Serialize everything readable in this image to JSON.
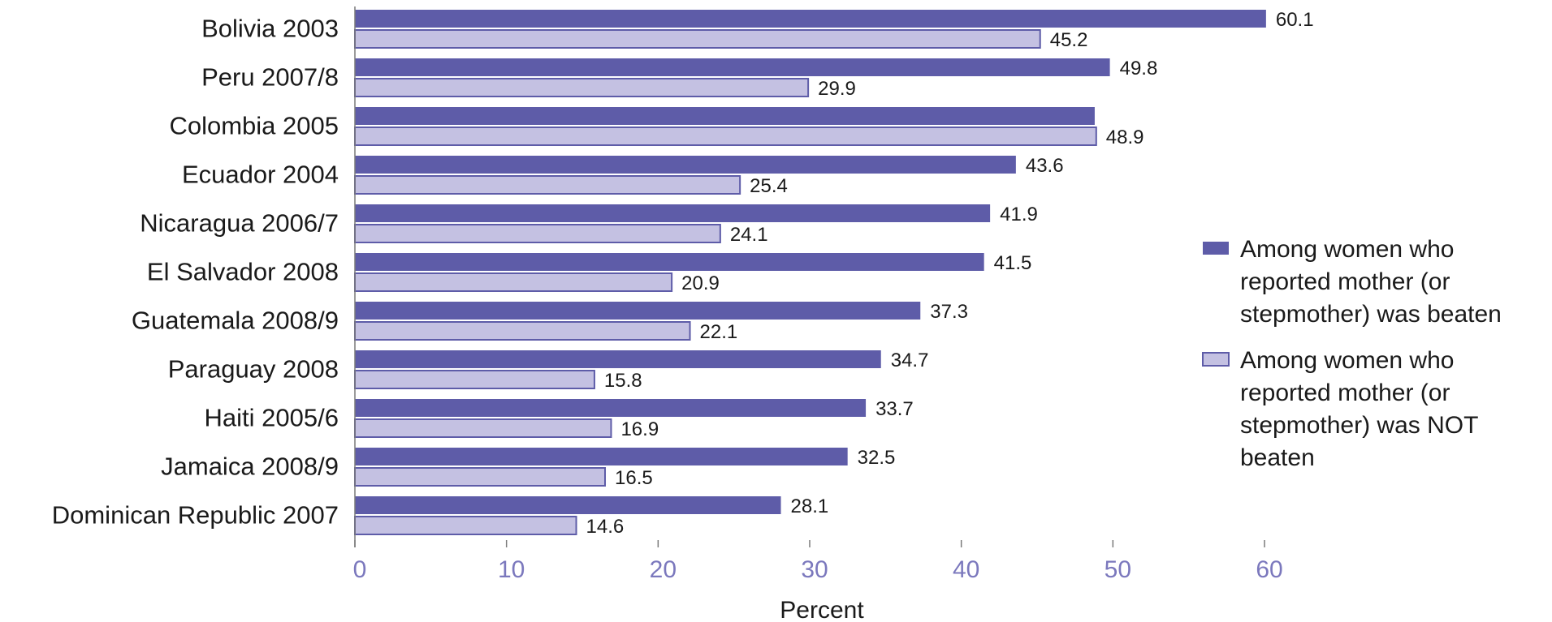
{
  "chart_data": {
    "type": "bar",
    "orientation": "horizontal",
    "categories": [
      "Bolivia 2003",
      "Peru 2007/8",
      "Colombia 2005",
      "Ecuador 2004",
      "Nicaragua 2006/7",
      "El Salvador 2008",
      "Guatemala 2008/9",
      "Paraguay 2008",
      "Haiti 2005/6",
      "Jamaica 2008/9",
      "Dominican Republic 2007"
    ],
    "series": [
      {
        "name": "Among women who reported mother (or stepmother) was beaten",
        "legend_lines": [
          "Among women who",
          "reported mother (or",
          "stepmother) was beaten"
        ],
        "color": "#5e5ca8",
        "values": [
          60.1,
          49.8,
          48.8,
          43.6,
          41.9,
          41.5,
          37.3,
          34.7,
          33.7,
          32.5,
          28.1
        ],
        "labels": [
          "60.1",
          "49.8",
          "",
          "43.6",
          "41.9",
          "41.5",
          "37.3",
          "34.7",
          "33.7",
          "32.5",
          "28.1"
        ]
      },
      {
        "name": "Among women who reported mother (or stepmother) was NOT beaten",
        "legend_lines": [
          "Among women who",
          "reported mother (or",
          "stepmother) was NOT",
          "beaten"
        ],
        "color": "#c4c1e2",
        "stroke": "#5e5ca8",
        "values": [
          45.2,
          29.9,
          48.9,
          25.4,
          24.1,
          20.9,
          22.1,
          15.8,
          16.9,
          16.5,
          14.6
        ],
        "labels": [
          "45.2",
          "29.9",
          "48.9",
          "25.4",
          "24.1",
          "20.9",
          "22.1",
          "15.8",
          "16.9",
          "16.5",
          "14.6"
        ]
      }
    ],
    "xlabel": "Percent",
    "xlim": [
      0,
      60
    ],
    "xticks": [
      0,
      10,
      20,
      30,
      40,
      50,
      60
    ],
    "tick_color": "#7b78bd",
    "grid": false,
    "legend_position": "right"
  }
}
